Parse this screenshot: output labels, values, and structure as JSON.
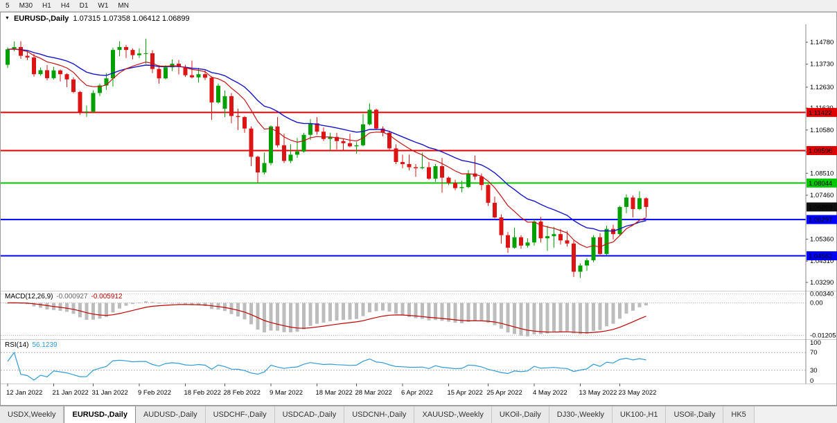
{
  "toolbar": {
    "periods": [
      "5",
      "M30",
      "H1",
      "H4",
      "D1",
      "W1",
      "MN"
    ]
  },
  "chart": {
    "title_symbol": "EURUSD-,Daily",
    "title_ohlc": "1.07315 1.07358 1.06412 1.06899"
  },
  "chart_data": {
    "type": "candlestick",
    "symbol": "EURUSD-,Daily",
    "main_pane": {
      "y_range": [
        1.0289,
        1.1564
      ],
      "axis_labels": [
        "1.14780",
        "1.13730",
        "1.12630",
        "1.11630",
        "1.10580",
        "1.09530",
        "1.08510",
        "1.07460",
        "1.05360",
        "1.04310",
        "1.03290"
      ],
      "current_price": "1.06899",
      "current_price_box_color": "#101010",
      "bull_color": "#00a000",
      "bear_color": "#dc1414",
      "ma_fast": {
        "color": "#c41414",
        "period": 10
      },
      "ma_slow": {
        "color": "#1414c8",
        "period": 21
      },
      "hlines": [
        {
          "price": 1.11422,
          "label": "1.11422",
          "color": "#e00000"
        },
        {
          "price": 1.09596,
          "label": "1.09596",
          "color": "#e00000"
        },
        {
          "price": 1.08044,
          "label": "1.08044",
          "color": "#00c800"
        },
        {
          "price": 1.06297,
          "label": "1.06297",
          "color": "#0000ff"
        },
        {
          "price": 1.04562,
          "label": "1.04562",
          "color": "#0000ff"
        }
      ],
      "candles": [
        [
          1.137,
          1.1453,
          1.1355,
          1.1444
        ],
        [
          1.1444,
          1.1482,
          1.1435,
          1.1455
        ],
        [
          1.1455,
          1.1483,
          1.1398,
          1.1413
        ],
        [
          1.1413,
          1.1435,
          1.1392,
          1.1405
        ],
        [
          1.1405,
          1.1422,
          1.1313,
          1.1325
        ],
        [
          1.1325,
          1.1357,
          1.1318,
          1.1344
        ],
        [
          1.1344,
          1.1369,
          1.1295,
          1.1306
        ],
        [
          1.1306,
          1.136,
          1.13,
          1.1343
        ],
        [
          1.1343,
          1.1348,
          1.129,
          1.1325
        ],
        [
          1.1325,
          1.133,
          1.1263,
          1.13
        ],
        [
          1.13,
          1.131,
          1.1234,
          1.124
        ],
        [
          1.124,
          1.1245,
          1.1131,
          1.1145
        ],
        [
          1.1145,
          1.1175,
          1.1121,
          1.1146
        ],
        [
          1.1146,
          1.1248,
          1.114,
          1.1235
        ],
        [
          1.1235,
          1.128,
          1.122,
          1.1271
        ],
        [
          1.1271,
          1.133,
          1.125,
          1.1305
        ],
        [
          1.1305,
          1.1452,
          1.1266,
          1.1441
        ],
        [
          1.1441,
          1.1483,
          1.1411,
          1.1455
        ],
        [
          1.1455,
          1.1465,
          1.1402,
          1.1441
        ],
        [
          1.1441,
          1.1449,
          1.1396,
          1.1416
        ],
        [
          1.1416,
          1.1448,
          1.1403,
          1.1424
        ],
        [
          1.1424,
          1.1495,
          1.1375,
          1.1425
        ],
        [
          1.1425,
          1.144,
          1.133,
          1.135
        ],
        [
          1.135,
          1.1369,
          1.128,
          1.1305
        ],
        [
          1.1305,
          1.1368,
          1.13,
          1.1358
        ],
        [
          1.1358,
          1.1395,
          1.134,
          1.1375
        ],
        [
          1.1375,
          1.1393,
          1.1324,
          1.136
        ],
        [
          1.136,
          1.137,
          1.1312,
          1.132
        ],
        [
          1.132,
          1.139,
          1.1305,
          1.131
        ],
        [
          1.131,
          1.1355,
          1.1285,
          1.1325
        ],
        [
          1.1325,
          1.1344,
          1.1297,
          1.1308
        ],
        [
          1.1308,
          1.1315,
          1.1106,
          1.119
        ],
        [
          1.119,
          1.128,
          1.1184,
          1.127
        ],
        [
          1.116,
          1.1247,
          1.112,
          1.122
        ],
        [
          1.122,
          1.1235,
          1.109,
          1.1125
        ],
        [
          1.1125,
          1.116,
          1.1058,
          1.112
        ],
        [
          1.112,
          1.1125,
          1.1045,
          1.1065
        ],
        [
          1.1065,
          1.1075,
          1.0885,
          1.093
        ],
        [
          1.093,
          1.0935,
          1.0805,
          1.0855
        ],
        [
          1.0855,
          1.095,
          1.0845,
          1.09
        ],
        [
          1.09,
          1.108,
          1.089,
          1.1075
        ],
        [
          1.1075,
          1.112,
          1.0975,
          1.0985
        ],
        [
          1.0985,
          1.104,
          1.09,
          1.091
        ],
        [
          1.091,
          1.099,
          1.09,
          1.094
        ],
        [
          1.094,
          1.102,
          1.0925,
          1.0955
        ],
        [
          1.0955,
          1.1045,
          1.095,
          1.1035
        ],
        [
          1.1035,
          1.111,
          1.101,
          1.109
        ],
        [
          1.109,
          1.112,
          1.1035,
          1.105
        ],
        [
          1.105,
          1.107,
          1.1005,
          1.1015
        ],
        [
          1.1015,
          1.1045,
          1.096,
          1.1025
        ],
        [
          1.1025,
          1.1045,
          1.0965,
          1.1005
        ],
        [
          1.1005,
          1.1015,
          1.096,
          1.0995
        ],
        [
          1.0995,
          1.104,
          1.0975,
          1.098
        ],
        [
          1.098,
          1.1,
          1.0945,
          1.0985
        ],
        [
          1.0985,
          1.1135,
          1.098,
          1.1085
        ],
        [
          1.1085,
          1.1185,
          1.108,
          1.1155
        ],
        [
          1.1155,
          1.116,
          1.106,
          1.1065
        ],
        [
          1.1065,
          1.1075,
          1.1027,
          1.1045
        ],
        [
          1.1045,
          1.1055,
          1.096,
          1.097
        ],
        [
          1.097,
          1.099,
          1.0895,
          1.0905
        ],
        [
          1.0905,
          1.094,
          1.0875,
          1.0895
        ],
        [
          1.0895,
          1.094,
          1.0865,
          1.088
        ],
        [
          1.088,
          1.0895,
          1.0835,
          1.0875
        ],
        [
          1.0875,
          1.095,
          1.087,
          1.088
        ],
        [
          1.088,
          1.0905,
          1.082,
          1.0825
        ],
        [
          1.0825,
          1.0895,
          1.081,
          1.0885
        ],
        [
          1.0885,
          1.0925,
          1.0758,
          1.083
        ],
        [
          1.083,
          1.0835,
          1.0795,
          1.0805
        ],
        [
          1.0805,
          1.082,
          1.077,
          1.078
        ],
        [
          1.078,
          1.0815,
          1.076,
          1.0785
        ],
        [
          1.0785,
          1.0867,
          1.078,
          1.085
        ],
        [
          1.085,
          1.0935,
          1.082,
          1.0835
        ],
        [
          1.0835,
          1.085,
          1.077,
          1.0795
        ],
        [
          1.0795,
          1.08,
          1.0695,
          1.071
        ],
        [
          1.071,
          1.074,
          1.0635,
          1.064
        ],
        [
          1.064,
          1.0655,
          1.0515,
          1.0555
        ],
        [
          1.0555,
          1.057,
          1.047,
          1.0495
        ],
        [
          1.0495,
          1.059,
          1.049,
          1.0545
        ],
        [
          1.0545,
          1.0555,
          1.049,
          1.0505
        ],
        [
          1.0505,
          1.054,
          1.0495,
          1.052
        ],
        [
          1.052,
          1.063,
          1.0505,
          1.062
        ],
        [
          1.062,
          1.0642,
          1.052,
          1.054
        ],
        [
          1.054,
          1.06,
          1.048,
          1.055
        ],
        [
          1.055,
          1.0595,
          1.0495,
          1.056
        ],
        [
          1.056,
          1.0585,
          1.051,
          1.053
        ],
        [
          1.053,
          1.0575,
          1.05,
          1.0515
        ],
        [
          1.0515,
          1.053,
          1.0355,
          1.038
        ],
        [
          1.038,
          1.042,
          1.035,
          1.041
        ],
        [
          1.041,
          1.0445,
          1.0385,
          1.0435
        ],
        [
          1.0435,
          1.0555,
          1.0425,
          1.0545
        ],
        [
          1.0545,
          1.0565,
          1.0455,
          1.0465
        ],
        [
          1.0465,
          1.06,
          1.046,
          1.0585
        ],
        [
          1.0585,
          1.0605,
          1.0535,
          1.056
        ],
        [
          1.056,
          1.0695,
          1.0555,
          1.069
        ],
        [
          1.069,
          1.075,
          1.066,
          1.0735
        ],
        [
          1.0735,
          1.0745,
          1.064,
          1.068
        ],
        [
          1.068,
          1.0765,
          1.0675,
          1.0732
        ],
        [
          1.07315,
          1.07358,
          1.06412,
          1.06899
        ]
      ]
    },
    "macd_pane": {
      "name": "MACD(12,26,9)",
      "value_main": "-0.000927",
      "value_signal": "-0.005912",
      "histogram_color": "#bdbdbd",
      "signal_color": "#c00000",
      "y_range": [
        -0.0135,
        0.0045
      ],
      "levels": [
        0.0034,
        0,
        -0.01205
      ],
      "axis_labels": [
        "0.00340",
        "0.00",
        "-0.01205"
      ]
    },
    "rsi_pane": {
      "name": "RSI(14)",
      "value": "56.1239",
      "line_color": "#2e9bd6",
      "levels": [
        70,
        30
      ],
      "axis_labels": [
        "100",
        "70",
        "30",
        "0"
      ],
      "axis_values": [
        100,
        70,
        30,
        0
      ]
    },
    "time_axis": {
      "ticks": [
        {
          "i": 0,
          "label": "12 Jan 2022"
        },
        {
          "i": 7,
          "label": "21 Jan 2022"
        },
        {
          "i": 13,
          "label": "31 Jan 2022"
        },
        {
          "i": 20,
          "label": "9 Feb 2022"
        },
        {
          "i": 27,
          "label": "18 Feb 2022"
        },
        {
          "i": 33,
          "label": "28 Feb 2022"
        },
        {
          "i": 40,
          "label": "9 Mar 2022"
        },
        {
          "i": 47,
          "label": "18 Mar 2022"
        },
        {
          "i": 53,
          "label": "28 Mar 2022"
        },
        {
          "i": 60,
          "label": "6 Apr 2022"
        },
        {
          "i": 67,
          "label": "15 Apr 2022"
        },
        {
          "i": 73,
          "label": "25 Apr 2022"
        },
        {
          "i": 80,
          "label": "4 May 2022"
        },
        {
          "i": 87,
          "label": "13 May 2022"
        },
        {
          "i": 93,
          "label": "23 May 2022"
        }
      ]
    }
  },
  "tabs": {
    "items": [
      {
        "label": "USDX,Weekly",
        "active": false
      },
      {
        "label": "EURUSD-,Daily",
        "active": true
      },
      {
        "label": "AUDUSD-,Daily",
        "active": false
      },
      {
        "label": "USDCHF-,Daily",
        "active": false
      },
      {
        "label": "USDCAD-,Daily",
        "active": false
      },
      {
        "label": "USDCNH-,Daily",
        "active": false
      },
      {
        "label": "XAUUSD-,Weekly",
        "active": false
      },
      {
        "label": "UKOil-,Daily",
        "active": false
      },
      {
        "label": "DJ30-,Weekly",
        "active": false
      },
      {
        "label": "UK100-,H1",
        "active": false
      },
      {
        "label": "USOil-,Daily",
        "active": false
      },
      {
        "label": "HK5",
        "active": false
      }
    ]
  }
}
